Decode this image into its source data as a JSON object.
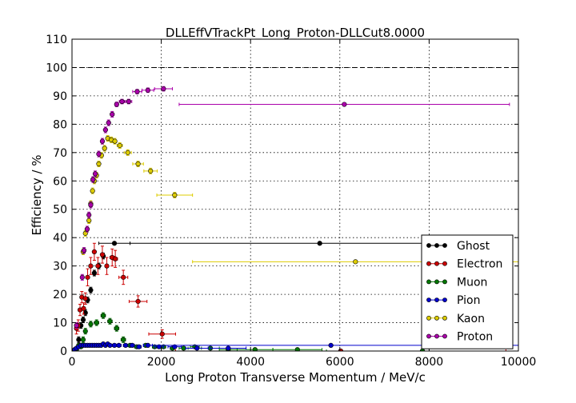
{
  "chart_data": {
    "type": "scatter",
    "title": "DLLEffVTrackPt_Long_Proton-DLLCut8.0000",
    "xlabel": "Long Proton Transverse Momentum / MeV/c",
    "ylabel": "Efficiency / %",
    "xlim": [
      0,
      10000
    ],
    "ylim": [
      0,
      110
    ],
    "xticks": [
      0,
      2000,
      4000,
      6000,
      8000,
      10000
    ],
    "yticks": [
      0,
      10,
      20,
      30,
      40,
      50,
      60,
      70,
      80,
      90,
      100,
      110
    ],
    "reference_line": 100,
    "grid": true,
    "legend_position": "lower-right",
    "series": [
      {
        "name": "Ghost",
        "color": "#000000",
        "points": [
          [
            150,
            4.0,
            0,
            1.0
          ],
          [
            200,
            9.0,
            0,
            1.0
          ],
          [
            250,
            11.0,
            0,
            1.0
          ],
          [
            300,
            13.5,
            0,
            1.0
          ],
          [
            350,
            18.0,
            0,
            1.0
          ],
          [
            420,
            21.5,
            0,
            1.0
          ],
          [
            500,
            27.5,
            0,
            1.0
          ],
          [
            600,
            30.0,
            0,
            1.0
          ],
          [
            700,
            33.5,
            0,
            1.0
          ],
          [
            950,
            38.0,
            350,
            0.5
          ],
          [
            5550,
            38.0,
            4250,
            0.5
          ]
        ]
      },
      {
        "name": "Electron",
        "color": "#cc0000",
        "points": [
          [
            60,
            0.5,
            0,
            0.5
          ],
          [
            100,
            8.0,
            0,
            2.0
          ],
          [
            140,
            9.0,
            0,
            2.0
          ],
          [
            180,
            14.5,
            0,
            2.0
          ],
          [
            220,
            19.0,
            0,
            2.0
          ],
          [
            260,
            15.0,
            0,
            2.0
          ],
          [
            300,
            18.5,
            0,
            2.0
          ],
          [
            350,
            26.0,
            0,
            3.0
          ],
          [
            420,
            30.0,
            0,
            3.0
          ],
          [
            500,
            35.0,
            0,
            3.0
          ],
          [
            580,
            30.0,
            0,
            3.0
          ],
          [
            680,
            34.0,
            0,
            3.0
          ],
          [
            780,
            30.0,
            0,
            3.0
          ],
          [
            900,
            33.0,
            50,
            3.0
          ],
          [
            970,
            32.5,
            50,
            3.0
          ],
          [
            1150,
            26.0,
            100,
            2.5
          ],
          [
            1480,
            17.5,
            200,
            2.0
          ],
          [
            2020,
            6.0,
            300,
            1.5
          ],
          [
            6020,
            0.0,
            3700,
            0.5
          ]
        ]
      },
      {
        "name": "Muon",
        "color": "#007700",
        "points": [
          [
            100,
            0.5,
            0,
            0.5
          ],
          [
            150,
            2.0,
            0,
            0.5
          ],
          [
            200,
            1.5,
            0,
            0.5
          ],
          [
            250,
            4.0,
            0,
            1.0
          ],
          [
            300,
            7.0,
            0,
            1.0
          ],
          [
            420,
            9.5,
            0,
            1.0
          ],
          [
            550,
            10.0,
            50,
            1.0
          ],
          [
            700,
            12.5,
            50,
            1.0
          ],
          [
            850,
            10.5,
            50,
            1.0
          ],
          [
            1000,
            8.0,
            50,
            1.0
          ],
          [
            1150,
            4.0,
            50,
            1.0
          ],
          [
            1300,
            2.0,
            50,
            0.5
          ],
          [
            1450,
            1.5,
            50,
            0.5
          ],
          [
            1650,
            2.0,
            50,
            0.5
          ],
          [
            1850,
            1.5,
            50,
            0.5
          ],
          [
            2050,
            1.5,
            50,
            0.5
          ],
          [
            2250,
            1.0,
            50,
            0.5
          ],
          [
            2500,
            1.0,
            100,
            0.5
          ],
          [
            2750,
            1.5,
            100,
            0.5
          ],
          [
            3100,
            1.0,
            200,
            0.5
          ],
          [
            3500,
            0.5,
            200,
            0.5
          ],
          [
            4100,
            0.5,
            400,
            0.5
          ],
          [
            5050,
            0.5,
            550,
            0.3
          ],
          [
            7850,
            0.0,
            2150,
            0.3
          ]
        ]
      },
      {
        "name": "Pion",
        "color": "#0000cc",
        "points": [
          [
            60,
            0.5,
            0,
            0.3
          ],
          [
            100,
            1.0,
            0,
            0.3
          ],
          [
            150,
            1.5,
            0,
            0.3
          ],
          [
            200,
            2.0,
            0,
            0.3
          ],
          [
            250,
            2.0,
            0,
            0.3
          ],
          [
            300,
            2.0,
            0,
            0.3
          ],
          [
            350,
            2.0,
            0,
            0.3
          ],
          [
            400,
            2.0,
            0,
            0.3
          ],
          [
            450,
            2.0,
            0,
            0.3
          ],
          [
            500,
            2.0,
            0,
            0.3
          ],
          [
            550,
            2.0,
            0,
            0.3
          ],
          [
            600,
            2.0,
            0,
            0.3
          ],
          [
            650,
            2.0,
            0,
            0.3
          ],
          [
            700,
            2.5,
            0,
            0.3
          ],
          [
            750,
            2.0,
            0,
            0.3
          ],
          [
            800,
            2.5,
            0,
            0.3
          ],
          [
            850,
            2.0,
            0,
            0.3
          ],
          [
            950,
            2.0,
            50,
            0.3
          ],
          [
            1050,
            2.0,
            50,
            0.3
          ],
          [
            1200,
            2.0,
            50,
            0.3
          ],
          [
            1350,
            2.0,
            50,
            0.3
          ],
          [
            1500,
            1.5,
            50,
            0.3
          ],
          [
            1700,
            2.0,
            100,
            0.3
          ],
          [
            1950,
            1.5,
            100,
            0.3
          ],
          [
            2300,
            1.5,
            150,
            0.3
          ],
          [
            2800,
            1.0,
            250,
            0.3
          ],
          [
            3500,
            1.0,
            400,
            0.3
          ],
          [
            5800,
            2.0,
            4200,
            0.3
          ]
        ]
      },
      {
        "name": "Kaon",
        "color": "#ddcc00",
        "points": [
          [
            250,
            35.0,
            0,
            1.0
          ],
          [
            300,
            41.5,
            0,
            1.0
          ],
          [
            340,
            43.0,
            0,
            1.0
          ],
          [
            380,
            46.0,
            0,
            1.0
          ],
          [
            420,
            52.0,
            0,
            1.0
          ],
          [
            460,
            56.5,
            0,
            1.0
          ],
          [
            500,
            60.0,
            0,
            1.0
          ],
          [
            550,
            62.0,
            0,
            1.0
          ],
          [
            600,
            66.0,
            0,
            1.0
          ],
          [
            660,
            69.0,
            0,
            1.0
          ],
          [
            730,
            71.5,
            0,
            1.0
          ],
          [
            800,
            75.0,
            0,
            1.0
          ],
          [
            880,
            74.5,
            40,
            1.0
          ],
          [
            960,
            74.0,
            40,
            1.0
          ],
          [
            1070,
            72.5,
            60,
            1.0
          ],
          [
            1250,
            70.0,
            80,
            1.0
          ],
          [
            1480,
            66.0,
            120,
            1.0
          ],
          [
            1760,
            63.5,
            150,
            1.0
          ],
          [
            2300,
            55.0,
            400,
            1.0
          ],
          [
            6350,
            31.5,
            3650,
            0.5
          ]
        ]
      },
      {
        "name": "Proton",
        "color": "#aa00aa",
        "points": [
          [
            100,
            9.0,
            0,
            1.0
          ],
          [
            230,
            26.0,
            0,
            1.0
          ],
          [
            270,
            35.5,
            0,
            1.0
          ],
          [
            340,
            43.0,
            0,
            1.0
          ],
          [
            380,
            48.0,
            0,
            1.0
          ],
          [
            420,
            51.5,
            0,
            1.0
          ],
          [
            470,
            60.5,
            0,
            1.0
          ],
          [
            520,
            62.5,
            0,
            1.0
          ],
          [
            600,
            69.5,
            0,
            1.0
          ],
          [
            680,
            74.0,
            0,
            1.0
          ],
          [
            750,
            78.0,
            0,
            1.0
          ],
          [
            820,
            80.5,
            0,
            1.0
          ],
          [
            900,
            83.5,
            40,
            1.0
          ],
          [
            1000,
            87.0,
            40,
            0.8
          ],
          [
            1120,
            88.0,
            60,
            0.8
          ],
          [
            1270,
            88.0,
            70,
            0.8
          ],
          [
            1460,
            91.5,
            100,
            0.8
          ],
          [
            1700,
            92.0,
            130,
            0.8
          ],
          [
            2050,
            92.5,
            200,
            0.8
          ],
          [
            6100,
            87.0,
            3700,
            0.5
          ]
        ]
      }
    ]
  }
}
